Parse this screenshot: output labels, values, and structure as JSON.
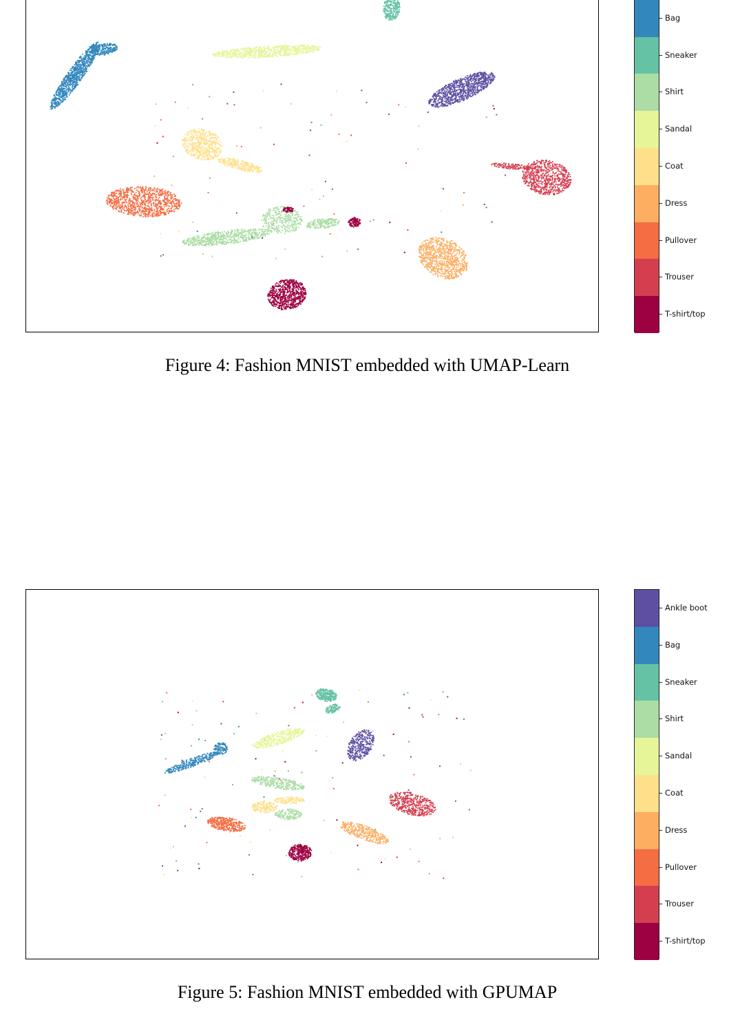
{
  "colorbar": {
    "classes": [
      "T-shirt/top",
      "Trouser",
      "Pullover",
      "Dress",
      "Coat",
      "Sandal",
      "Shirt",
      "Sneaker",
      "Bag",
      "Ankle boot"
    ],
    "colors": [
      "#9e0142",
      "#d53e4f",
      "#f46d43",
      "#fdae61",
      "#fee08b",
      "#e6f598",
      "#abdda4",
      "#66c2a5",
      "#3288bd",
      "#5e4fa2"
    ]
  },
  "figure4": {
    "caption": "Figure 4: Fashion MNIST embedded with UMAP-Learn"
  },
  "figure5": {
    "caption": "Figure 5: Fashion MNIST embedded with GPUMAP"
  },
  "chart_data": [
    {
      "type": "scatter",
      "title": "",
      "xlabel": "",
      "ylabel": "",
      "grid": false,
      "legend": "colorbar-right",
      "series": [
        {
          "name": "T-shirt/top",
          "x": [
            0.48,
            0.57
          ],
          "y": [
            0.07,
            0.33
          ]
        },
        {
          "name": "Trouser",
          "x": [
            0.89
          ],
          "y": [
            0.47
          ]
        },
        {
          "name": "Pullover",
          "x": [
            0.21
          ],
          "y": [
            0.4
          ]
        },
        {
          "name": "Dress",
          "x": [
            0.72
          ],
          "y": [
            0.23
          ]
        },
        {
          "name": "Coat",
          "x": [
            0.32,
            0.38
          ],
          "y": [
            0.57,
            0.49
          ]
        },
        {
          "name": "Sandal",
          "x": [
            0.41
          ],
          "y": [
            0.82
          ]
        },
        {
          "name": "Shirt",
          "x": [
            0.4,
            0.52
          ],
          "y": [
            0.28,
            0.33
          ]
        },
        {
          "name": "Sneaker",
          "x": [
            0.63
          ],
          "y": [
            0.99
          ]
        },
        {
          "name": "Bag",
          "x": [
            0.08
          ],
          "y": [
            0.78
          ]
        },
        {
          "name": "Ankle boot",
          "x": [
            0.78
          ],
          "y": [
            0.73
          ]
        }
      ]
    },
    {
      "type": "scatter",
      "title": "",
      "xlabel": "",
      "ylabel": "",
      "grid": false,
      "legend": "colorbar-right",
      "series": [
        {
          "name": "T-shirt/top",
          "x": [
            0.48
          ],
          "y": [
            0.3
          ]
        },
        {
          "name": "Trouser",
          "x": [
            0.67
          ],
          "y": [
            0.42
          ]
        },
        {
          "name": "Pullover",
          "x": [
            0.34
          ],
          "y": [
            0.36
          ]
        },
        {
          "name": "Dress",
          "x": [
            0.59
          ],
          "y": [
            0.34
          ]
        },
        {
          "name": "Coat",
          "x": [
            0.41,
            0.46
          ],
          "y": [
            0.42,
            0.43
          ]
        },
        {
          "name": "Sandal",
          "x": [
            0.47
          ],
          "y": [
            0.6
          ]
        },
        {
          "name": "Shirt",
          "x": [
            0.44,
            0.49
          ],
          "y": [
            0.5,
            0.44
          ]
        },
        {
          "name": "Sneaker",
          "x": [
            0.52
          ],
          "y": [
            0.73
          ]
        },
        {
          "name": "Bag",
          "x": [
            0.3
          ],
          "y": [
            0.55
          ]
        },
        {
          "name": "Ankle boot",
          "x": [
            0.59
          ],
          "y": [
            0.59
          ]
        }
      ]
    }
  ]
}
